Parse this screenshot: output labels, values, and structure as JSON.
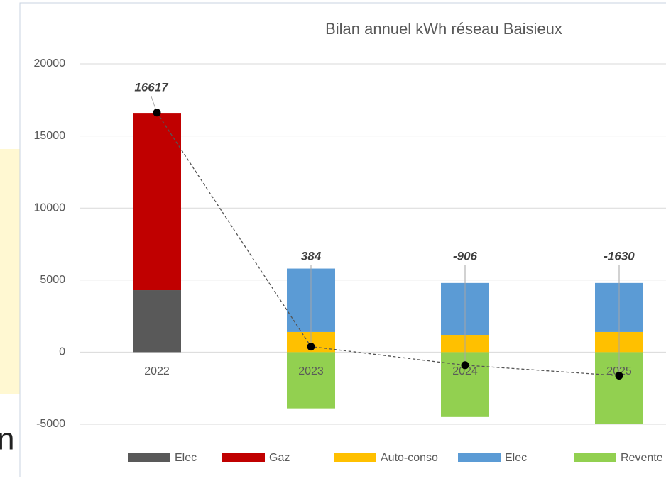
{
  "chart_data": {
    "type": "bar",
    "stacked": true,
    "title": "Bilan annuel kWh réseau Baisieux",
    "categories": [
      "2022",
      "2023",
      "2024",
      "2025"
    ],
    "series": [
      {
        "name": "Elec",
        "color": "#595959",
        "values": [
          4300,
          null,
          null,
          null
        ]
      },
      {
        "name": "Gaz",
        "color": "#c00000",
        "values": [
          12300,
          null,
          null,
          null
        ]
      },
      {
        "name": "Auto-conso",
        "color": "#ffc000",
        "values": [
          null,
          1400,
          1200,
          1400
        ]
      },
      {
        "name": "Elec",
        "color": "#5b9bd5",
        "values": [
          null,
          4400,
          3600,
          3400
        ]
      },
      {
        "name": "Revente",
        "color": "#92d050",
        "values": [
          null,
          -3900,
          -4500,
          -5000
        ]
      }
    ],
    "net": {
      "values": [
        16617,
        384,
        -906,
        -1630
      ],
      "color": "#000000"
    },
    "ylim": [
      -5000,
      20000
    ],
    "yticks": [
      -5000,
      0,
      5000,
      10000,
      15000,
      20000
    ],
    "grid": true,
    "legend": "bottom"
  },
  "background_fragment": "n"
}
